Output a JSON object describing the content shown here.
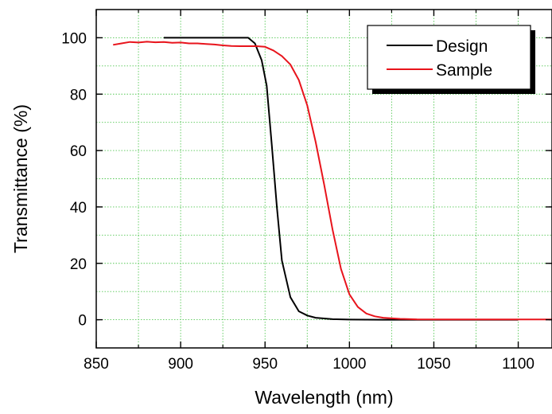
{
  "chart_data": {
    "type": "line",
    "title": "",
    "xlabel": "Wavelength (nm)",
    "ylabel": "Transmittance (%)",
    "xlim": [
      850,
      1120
    ],
    "ylim": [
      -10,
      110
    ],
    "xticks": [
      850,
      900,
      950,
      1000,
      1050,
      1100
    ],
    "yticks": [
      0,
      20,
      40,
      60,
      80,
      100
    ],
    "grid": true,
    "legend_position": "top-right",
    "series": [
      {
        "name": "Design",
        "color": "#000000",
        "x": [
          890,
          900,
          910,
          920,
          930,
          940,
          944,
          948,
          951,
          954,
          957,
          960,
          965,
          970,
          975,
          980,
          990,
          1000,
          1020,
          1050,
          1100
        ],
        "y": [
          100,
          100,
          100,
          100,
          100,
          100,
          98,
          92,
          83,
          62,
          40,
          21,
          8,
          3,
          1.5,
          0.7,
          0.2,
          0.05,
          0,
          0,
          0
        ]
      },
      {
        "name": "Sample",
        "color": "#e8141c",
        "x": [
          860,
          865,
          870,
          875,
          880,
          885,
          890,
          895,
          900,
          905,
          910,
          915,
          920,
          925,
          930,
          935,
          940,
          945,
          950,
          955,
          960,
          965,
          970,
          975,
          980,
          985,
          990,
          995,
          1000,
          1005,
          1010,
          1015,
          1020,
          1030,
          1040,
          1060,
          1080,
          1100,
          1120
        ],
        "y": [
          97.5,
          98,
          98.5,
          98.3,
          98.6,
          98.4,
          98.5,
          98.2,
          98.3,
          98,
          98,
          97.8,
          97.6,
          97.3,
          97.1,
          97,
          97,
          97,
          96.8,
          95.5,
          93.5,
          90.5,
          85,
          76,
          63,
          48,
          32,
          18,
          9,
          4.5,
          2.2,
          1.2,
          0.7,
          0.3,
          0.15,
          0.1,
          0.1,
          0.1,
          0.1
        ]
      }
    ]
  }
}
